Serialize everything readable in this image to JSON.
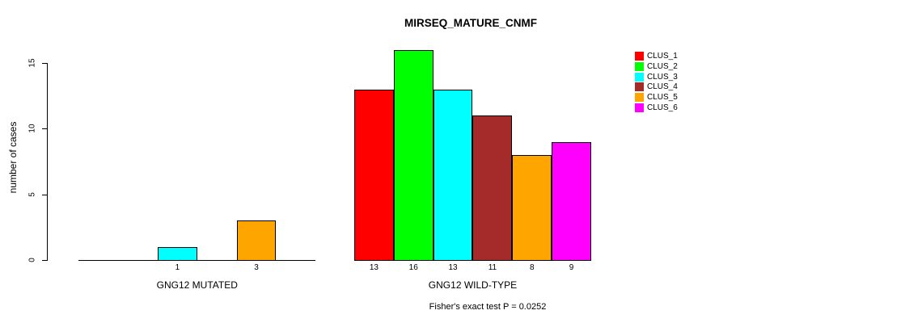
{
  "title": "MIRSEQ_MATURE_CNMF",
  "chart_data": {
    "type": "bar",
    "title": "MIRSEQ_MATURE_CNMF",
    "ylabel": "number of cases",
    "xlabel": "",
    "yticks": [
      0,
      5,
      10,
      15
    ],
    "ylim": [
      0,
      16
    ],
    "grid": false,
    "legend_position": "right",
    "categories": [
      "CLUS_1",
      "CLUS_2",
      "CLUS_3",
      "CLUS_4",
      "CLUS_5",
      "CLUS_6"
    ],
    "colors": [
      "#ff0000",
      "#00ff00",
      "#00ffff",
      "#a52a2a",
      "#ffa500",
      "#ff00ff"
    ],
    "groups": [
      {
        "label": "GNG12 MUTATED",
        "values": [
          0,
          0,
          1,
          0,
          3,
          0
        ]
      },
      {
        "label": "GNG12 WILD-TYPE",
        "values": [
          13,
          16,
          13,
          11,
          8,
          9
        ]
      }
    ],
    "bar_value_labels_shown": true,
    "hide_zero_value_labels": true,
    "annotation": "Fisher's exact test P = 0.0252"
  },
  "legend": {
    "items": [
      {
        "label": "CLUS_1",
        "color": "#ff0000"
      },
      {
        "label": "CLUS_2",
        "color": "#00ff00"
      },
      {
        "label": "CLUS_3",
        "color": "#00ffff"
      },
      {
        "label": "CLUS_4",
        "color": "#a52a2a"
      },
      {
        "label": "CLUS_5",
        "color": "#ffa500"
      },
      {
        "label": "CLUS_6",
        "color": "#ff00ff"
      }
    ]
  }
}
